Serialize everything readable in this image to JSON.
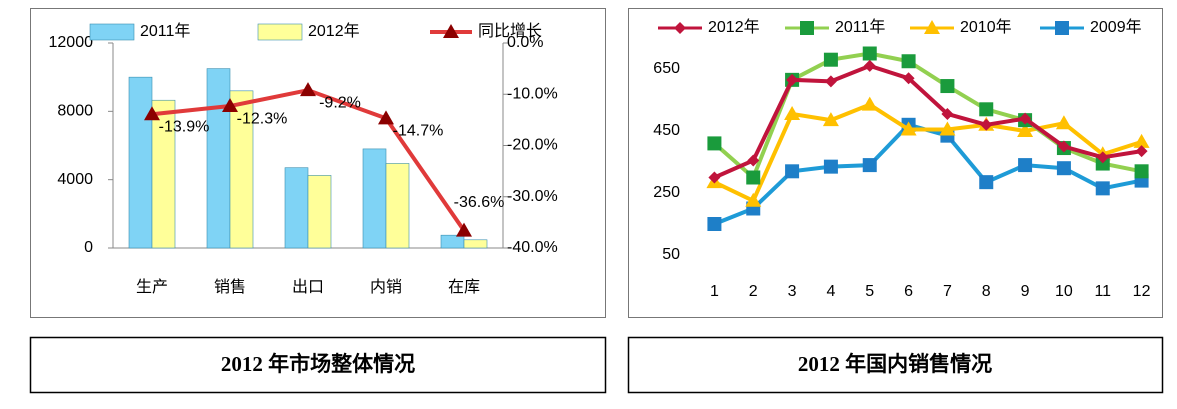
{
  "chart_data": [
    {
      "type": "bar",
      "caption": "2012 年市场整体情况",
      "categories": [
        "生产",
        "销售",
        "出口",
        "内销",
        "在库"
      ],
      "series": [
        {
          "name": "2011年",
          "color": "#7fd3f5",
          "values": [
            10000,
            10500,
            4700,
            5800,
            750
          ]
        },
        {
          "name": "2012年",
          "color": "#ffff99",
          "values": [
            8650,
            9200,
            4250,
            4950,
            480
          ]
        },
        {
          "name": "同比增长",
          "color": "#e03a3a",
          "type": "line",
          "axis": "y2",
          "values": [
            -13.9,
            -12.3,
            -9.2,
            -14.7,
            -36.6
          ],
          "value_labels": [
            "-13.9%",
            "-12.3%",
            "-9.2%",
            "-14.7%",
            "-36.6%"
          ]
        }
      ],
      "ylim": [
        0,
        12000
      ],
      "yticks": [
        0,
        4000,
        8000,
        12000
      ],
      "y2lim": [
        -40,
        0
      ],
      "y2ticks": [
        {
          "value": 0,
          "label": "0.0%"
        },
        {
          "value": -10,
          "label": "-10.0%"
        },
        {
          "value": -20,
          "label": "-20.0%"
        },
        {
          "value": -30,
          "label": "-30.0%"
        },
        {
          "value": -40,
          "label": "-40.0%"
        }
      ]
    },
    {
      "type": "line",
      "caption": "2012 年国内销售情况",
      "categories": [
        1,
        2,
        3,
        4,
        5,
        6,
        7,
        8,
        9,
        10,
        11,
        12
      ],
      "series": [
        {
          "name": "2012年",
          "color": "#c0143c",
          "marker": "diamond",
          "values": [
            300,
            355,
            615,
            610,
            660,
            620,
            505,
            470,
            490,
            400,
            365,
            385
          ]
        },
        {
          "name": "2011年",
          "color": "#92d050",
          "marker_color": "#1a9b3c",
          "marker": "square",
          "values": [
            410,
            300,
            615,
            680,
            700,
            675,
            595,
            520,
            485,
            395,
            345,
            320
          ]
        },
        {
          "name": "2010年",
          "color": "#ffc000",
          "marker": "triangle",
          "values": [
            285,
            225,
            505,
            485,
            535,
            455,
            455,
            470,
            450,
            475,
            375,
            415
          ]
        },
        {
          "name": "2009年",
          "color": "#1e9bd7",
          "marker_color": "#1e7fc8",
          "marker": "square",
          "values": [
            150,
            200,
            320,
            335,
            340,
            470,
            435,
            285,
            340,
            330,
            265,
            290
          ]
        }
      ],
      "ylim": [
        50,
        800
      ],
      "yticks": [
        50,
        250,
        450,
        650
      ]
    }
  ]
}
